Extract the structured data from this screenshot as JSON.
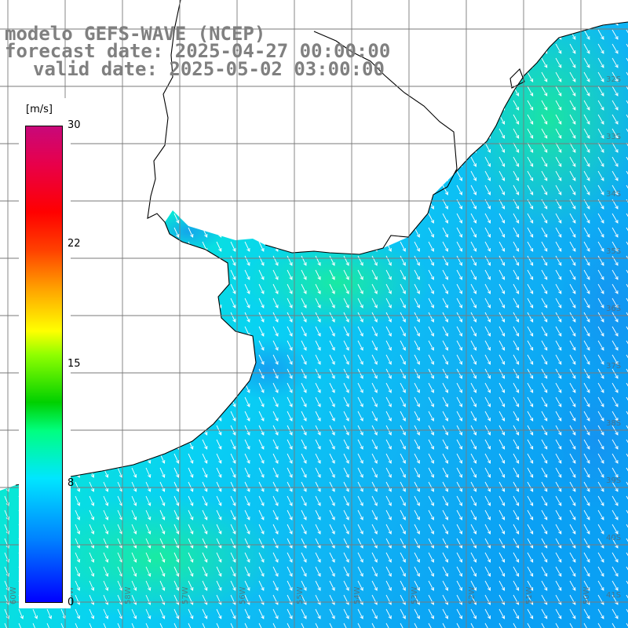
{
  "title": {
    "line1": "modelo GEFS-WAVE (NCEP)",
    "line2": "forecast date: 2025-04-27 00:00:00",
    "line3": "valid date: 2025-05-02 03:00:00"
  },
  "colorbar": {
    "unit": "[m/s]",
    "ticks": [
      "30",
      "22",
      "15",
      "8",
      "0"
    ],
    "tick_values": [
      30,
      22,
      15,
      8,
      0
    ],
    "range": [
      0,
      30
    ]
  },
  "grid_labels": {
    "latitude": [
      "32S",
      "33S",
      "34S",
      "35S",
      "36S",
      "37S",
      "38S",
      "39S",
      "40S",
      "41S"
    ],
    "longitude": [
      "60W",
      "59W",
      "58W",
      "57W",
      "56W",
      "55W",
      "54W",
      "53W",
      "52W",
      "51W",
      "50W"
    ]
  },
  "wind_direction": "arrows pointing south-south-east",
  "colors": {
    "land": "#ffffff",
    "coastline": "#000000",
    "grid": "#808080",
    "arrows": "#ffffff",
    "title": "#808080"
  }
}
